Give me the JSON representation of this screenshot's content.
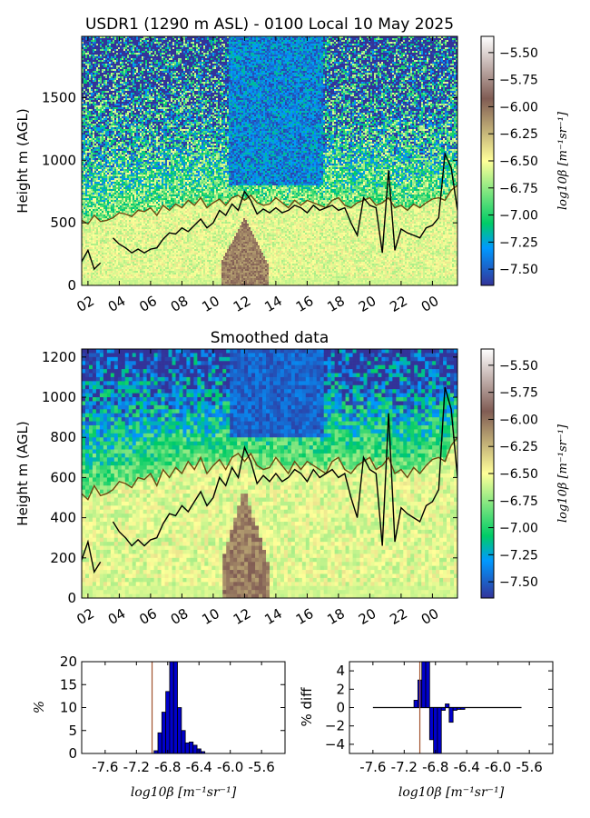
{
  "figure": {
    "heatmap_top": {
      "title": "USDR1 (1290 m ASL) - 0100 Local 10 May 2025",
      "ylabel": "Height m (AGL)"
    },
    "heatmap_smoothed": {
      "title": "Smoothed data",
      "ylabel": "Height m (AGL)"
    },
    "colorbar": {
      "label": "log10β [m⁻¹sr⁻¹]",
      "ticks": [
        "-5.50",
        "-5.75",
        "-6.00",
        "-6.25",
        "-6.50",
        "-6.75",
        "-7.00",
        "-7.25",
        "-7.50"
      ]
    },
    "hist": {
      "ylabel": "%",
      "xlabel": "log10β [m⁻¹sr⁻¹]"
    },
    "diff": {
      "ylabel": "% diff",
      "xlabel": "log10β [m⁻¹sr⁻¹]"
    }
  },
  "chart_data": [
    {
      "type": "heatmap",
      "title": "USDR1 (1290 m ASL) - 0100 Local 10 May 2025",
      "ylabel": "Height m (AGL)",
      "xlabel": "",
      "x_tick_labels": [
        "02",
        "04",
        "06",
        "08",
        "10",
        "12",
        "14",
        "16",
        "18",
        "20",
        "22",
        "00"
      ],
      "x_ticks_hours": [
        2,
        4,
        6,
        8,
        10,
        12,
        14,
        16,
        18,
        20,
        22,
        24
      ],
      "xlim_hours": [
        1.6,
        25.6
      ],
      "ylim": [
        0,
        1990
      ],
      "y_ticks": [
        0,
        500,
        1000,
        1500
      ],
      "color_range": [
        -7.65,
        -5.35
      ],
      "colormap": "terrain",
      "series": [
        {
          "name": "",
          "color": "#000000",
          "x": [
            1.6,
            2.0,
            2.4,
            2.8,
            3.2,
            3.6,
            4.0,
            4.4,
            4.8,
            5.2,
            5.6,
            6.0,
            6.4,
            6.8,
            7.2,
            7.6,
            8.0,
            8.4,
            8.8,
            9.2,
            9.6,
            10.0,
            10.4,
            10.8,
            11.2,
            11.6,
            12.0,
            12.4,
            12.8,
            13.2,
            13.6,
            14.0,
            14.4,
            14.8,
            15.2,
            15.6,
            16.0,
            16.4,
            16.8,
            17.2,
            17.6,
            18.0,
            18.4,
            18.8,
            19.2,
            19.6,
            20.0,
            20.4,
            20.8,
            21.2,
            21.6,
            22.0,
            22.4,
            22.8,
            23.2,
            23.6,
            24.0,
            24.4,
            24.8,
            25.2,
            25.6
          ],
          "y": [
            190,
            280,
            130,
            180,
            null,
            380,
            330,
            300,
            260,
            290,
            260,
            290,
            300,
            370,
            420,
            410,
            460,
            430,
            480,
            530,
            460,
            500,
            600,
            560,
            650,
            600,
            750,
            680,
            570,
            610,
            580,
            620,
            580,
            600,
            640,
            620,
            580,
            640,
            600,
            620,
            640,
            600,
            620,
            500,
            400,
            700,
            640,
            620,
            260,
            920,
            280,
            450,
            420,
            400,
            380,
            460,
            480,
            540,
            1050,
            940,
            600
          ]
        },
        {
          "name": "",
          "color": "#6b4a12",
          "x": [
            1.6,
            2.0,
            2.4,
            2.8,
            3.2,
            3.6,
            4.0,
            4.4,
            4.8,
            5.2,
            5.6,
            6.0,
            6.4,
            6.8,
            7.2,
            7.6,
            8.0,
            8.4,
            8.8,
            9.2,
            9.6,
            10.0,
            10.4,
            10.8,
            11.2,
            11.6,
            12.0,
            12.4,
            12.8,
            13.2,
            13.6,
            14.0,
            14.4,
            14.8,
            15.2,
            15.6,
            16.0,
            16.4,
            16.8,
            17.2,
            17.6,
            18.0,
            18.4,
            18.8,
            19.2,
            19.6,
            20.0,
            20.4,
            20.8,
            21.2,
            21.6,
            22.0,
            22.4,
            22.8,
            23.2,
            23.6,
            24.0,
            24.4,
            24.8,
            25.2,
            25.6
          ],
          "y": [
            520,
            490,
            560,
            510,
            520,
            540,
            580,
            570,
            550,
            600,
            590,
            620,
            560,
            640,
            600,
            650,
            620,
            680,
            640,
            700,
            620,
            660,
            690,
            640,
            700,
            720,
            680,
            720,
            660,
            640,
            650,
            700,
            660,
            620,
            680,
            640,
            680,
            660,
            640,
            620,
            680,
            700,
            640,
            620,
            660,
            680,
            700,
            640,
            660,
            700,
            620,
            640,
            600,
            650,
            620,
            660,
            690,
            700,
            680,
            760,
            800
          ]
        }
      ]
    },
    {
      "type": "heatmap",
      "title": "Smoothed data",
      "ylabel": "Height m (AGL)",
      "xlabel": "",
      "x_tick_labels": [
        "02",
        "04",
        "06",
        "08",
        "10",
        "12",
        "14",
        "16",
        "18",
        "20",
        "22",
        "00"
      ],
      "x_ticks_hours": [
        2,
        4,
        6,
        8,
        10,
        12,
        14,
        16,
        18,
        20,
        22,
        24
      ],
      "xlim_hours": [
        1.6,
        25.6
      ],
      "ylim": [
        0,
        1240
      ],
      "y_ticks": [
        0,
        200,
        400,
        600,
        800,
        1000,
        1200
      ],
      "color_range": [
        -7.65,
        -5.35
      ],
      "colormap": "terrain",
      "series": [
        {
          "name": "",
          "color": "#000000",
          "x": [
            1.6,
            2.0,
            2.4,
            2.8,
            3.2,
            3.6,
            4.0,
            4.4,
            4.8,
            5.2,
            5.6,
            6.0,
            6.4,
            6.8,
            7.2,
            7.6,
            8.0,
            8.4,
            8.8,
            9.2,
            9.6,
            10.0,
            10.4,
            10.8,
            11.2,
            11.6,
            12.0,
            12.4,
            12.8,
            13.2,
            13.6,
            14.0,
            14.4,
            14.8,
            15.2,
            15.6,
            16.0,
            16.4,
            16.8,
            17.2,
            17.6,
            18.0,
            18.4,
            18.8,
            19.2,
            19.6,
            20.0,
            20.4,
            20.8,
            21.2,
            21.6,
            22.0,
            22.4,
            22.8,
            23.2,
            23.6,
            24.0,
            24.4,
            24.8,
            25.2,
            25.6
          ],
          "y": [
            190,
            280,
            130,
            180,
            null,
            380,
            330,
            300,
            260,
            290,
            260,
            290,
            300,
            370,
            420,
            410,
            460,
            430,
            480,
            530,
            460,
            500,
            600,
            560,
            650,
            600,
            750,
            680,
            570,
            610,
            580,
            620,
            580,
            600,
            640,
            620,
            580,
            640,
            600,
            620,
            640,
            600,
            620,
            500,
            400,
            700,
            640,
            620,
            260,
            920,
            280,
            450,
            420,
            400,
            380,
            460,
            480,
            540,
            1050,
            940,
            600
          ]
        },
        {
          "name": "",
          "color": "#6b4a12",
          "x": [
            1.6,
            2.0,
            2.4,
            2.8,
            3.2,
            3.6,
            4.0,
            4.4,
            4.8,
            5.2,
            5.6,
            6.0,
            6.4,
            6.8,
            7.2,
            7.6,
            8.0,
            8.4,
            8.8,
            9.2,
            9.6,
            10.0,
            10.4,
            10.8,
            11.2,
            11.6,
            12.0,
            12.4,
            12.8,
            13.2,
            13.6,
            14.0,
            14.4,
            14.8,
            15.2,
            15.6,
            16.0,
            16.4,
            16.8,
            17.2,
            17.6,
            18.0,
            18.4,
            18.8,
            19.2,
            19.6,
            20.0,
            20.4,
            20.8,
            21.2,
            21.6,
            22.0,
            22.4,
            22.8,
            23.2,
            23.6,
            24.0,
            24.4,
            24.8,
            25.2,
            25.6
          ],
          "y": [
            520,
            490,
            560,
            510,
            520,
            540,
            580,
            570,
            550,
            600,
            590,
            620,
            560,
            640,
            600,
            650,
            620,
            680,
            640,
            700,
            620,
            660,
            690,
            640,
            700,
            720,
            680,
            720,
            660,
            640,
            650,
            700,
            660,
            620,
            680,
            640,
            680,
            660,
            640,
            620,
            680,
            700,
            640,
            620,
            660,
            680,
            700,
            640,
            660,
            700,
            620,
            640,
            600,
            650,
            620,
            660,
            690,
            700,
            680,
            760,
            800
          ]
        }
      ]
    },
    {
      "type": "bar",
      "title": "",
      "xlabel": "log10β [m⁻¹sr⁻¹]",
      "ylabel": "%",
      "x_tick_labels": [
        "-7.6",
        "-7.2",
        "-6.8",
        "-6.4",
        "-6.0",
        "-5.6"
      ],
      "x_ticks": [
        -7.6,
        -7.2,
        -6.8,
        -6.4,
        -6.0,
        -5.6
      ],
      "xlim": [
        -7.9,
        -5.3
      ],
      "ylim": [
        0,
        20
      ],
      "y_ticks": [
        0,
        5,
        10,
        15,
        20
      ],
      "bar_width": 0.05,
      "x": [
        -6.95,
        -6.9,
        -6.85,
        -6.8,
        -6.75,
        -6.7,
        -6.65,
        -6.6,
        -6.55,
        -6.5,
        -6.45,
        -6.4,
        -6.35
      ],
      "values": [
        0.6,
        4.5,
        9.0,
        13.5,
        20.0,
        20.0,
        10.0,
        5.0,
        2.3,
        2.5,
        1.8,
        1.0,
        0.4
      ],
      "vline": {
        "x": -7.0,
        "color": "#a0522d"
      }
    },
    {
      "type": "bar",
      "title": "",
      "xlabel": "log10β [m⁻¹sr⁻¹]",
      "ylabel": "% diff",
      "x_tick_labels": [
        "-7.6",
        "-7.2",
        "-6.8",
        "-6.4",
        "-6.0",
        "-5.6"
      ],
      "x_ticks": [
        -7.6,
        -7.2,
        -6.8,
        -6.4,
        -6.0,
        -5.6
      ],
      "xlim": [
        -7.9,
        -5.3
      ],
      "ylim": [
        -5,
        5
      ],
      "y_ticks": [
        4,
        2,
        0,
        -2,
        -4
      ],
      "bar_width": 0.05,
      "x": [
        -7.05,
        -7.0,
        -6.95,
        -6.9,
        -6.85,
        -6.8,
        -6.75,
        -6.7,
        -6.65,
        -6.6,
        -6.55,
        -6.5,
        -6.45
      ],
      "values": [
        0.8,
        3.0,
        5.0,
        5.0,
        -3.5,
        -5.0,
        -5.0,
        -0.3,
        0.4,
        -1.6,
        -0.3,
        -0.2,
        -0.2
      ],
      "zero_line_range": [
        -7.6,
        -5.7
      ],
      "vline": {
        "x": -7.0,
        "color": "#a0522d"
      }
    }
  ]
}
